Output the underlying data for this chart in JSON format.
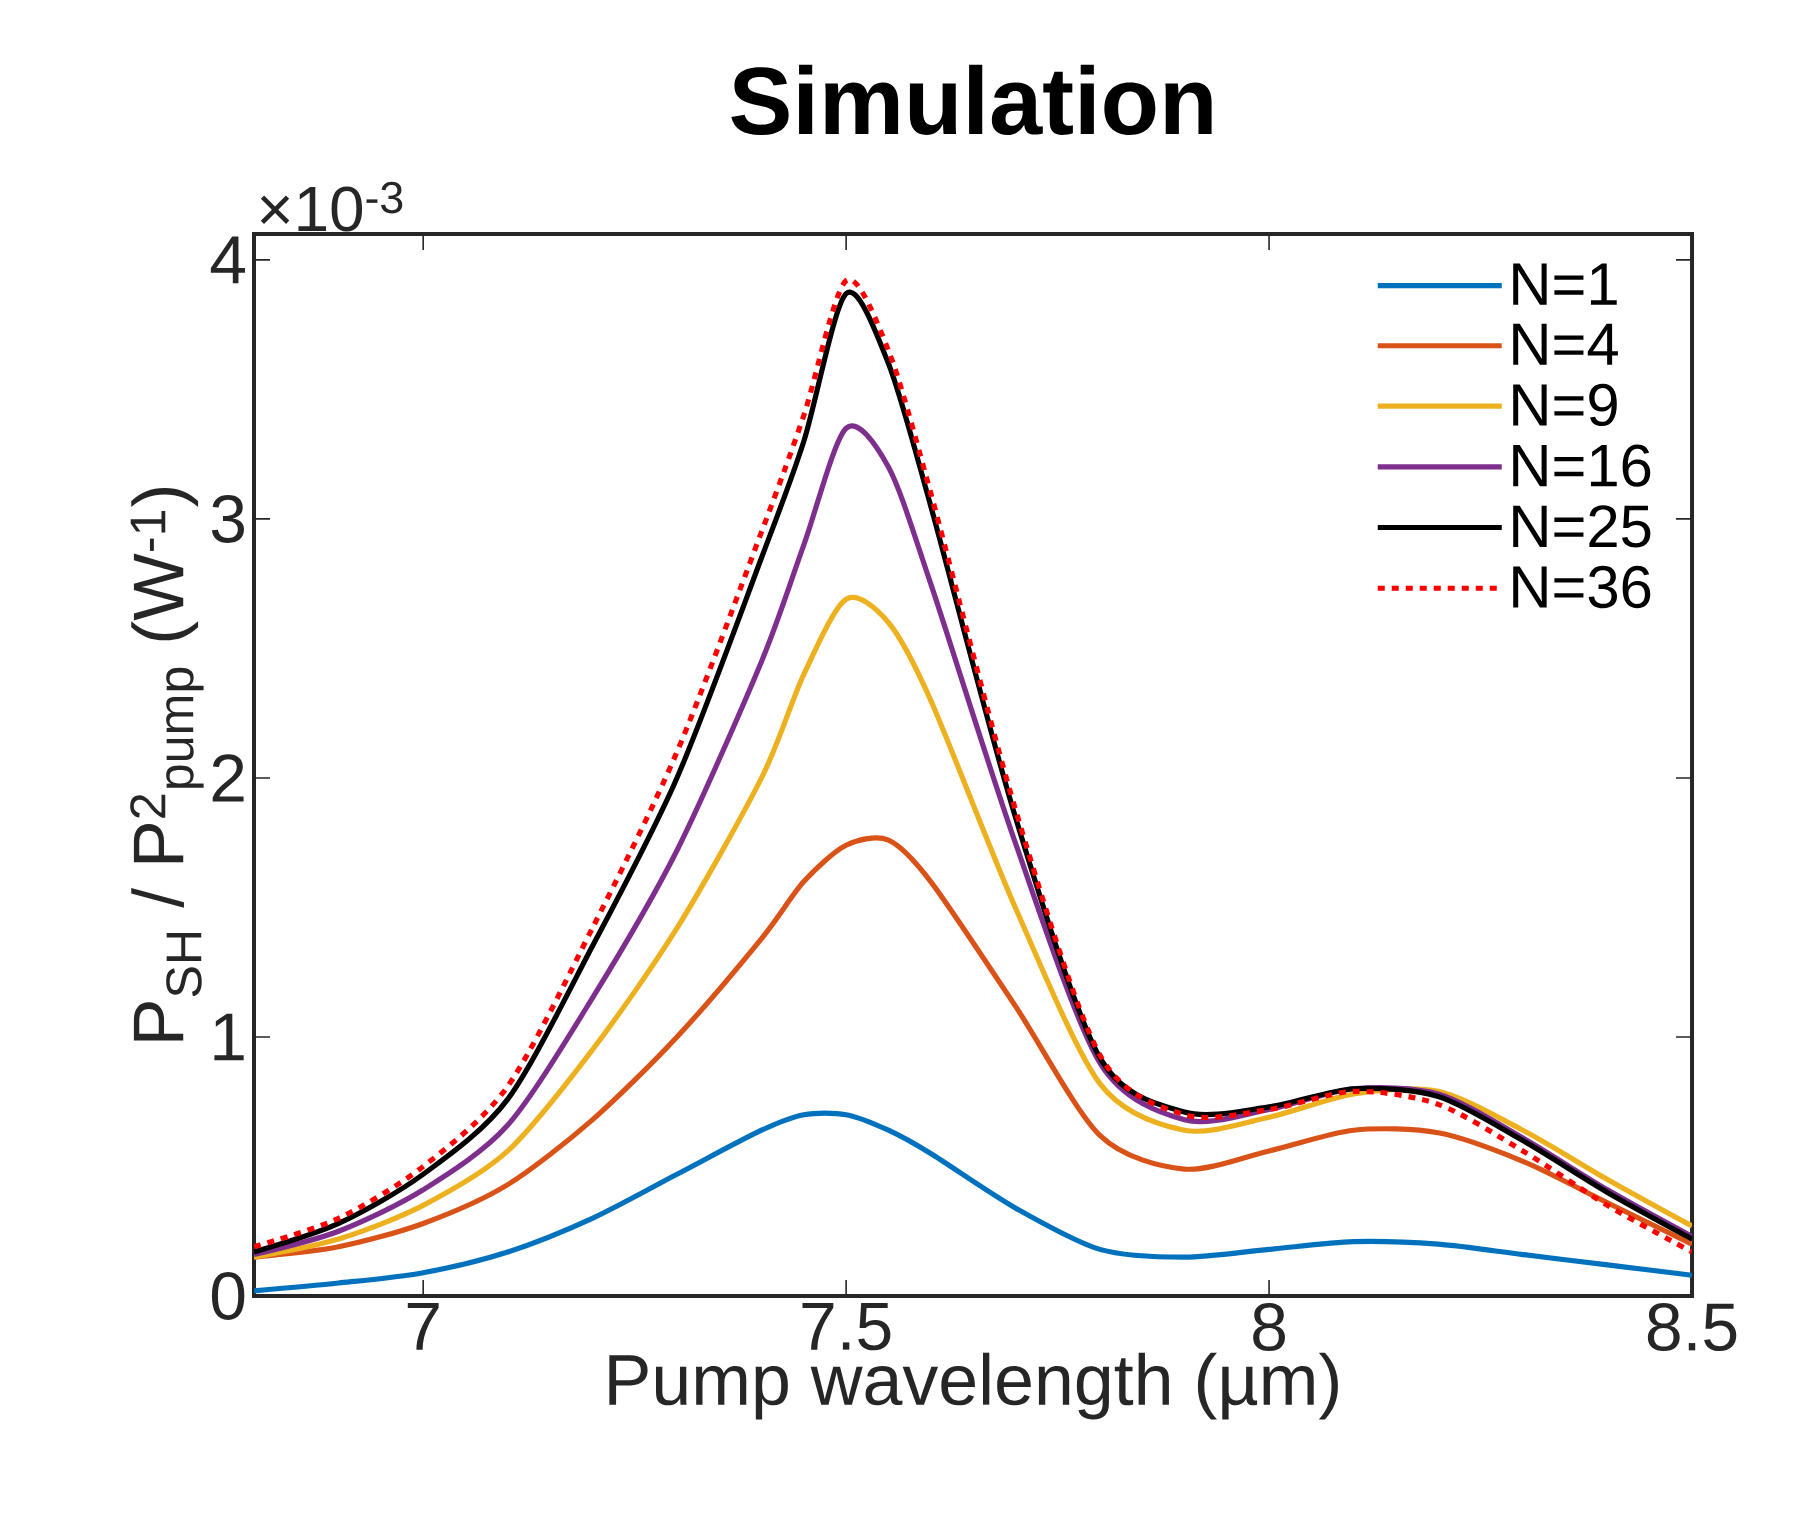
{
  "chart_data": {
    "type": "line",
    "title": "Simulation",
    "xlabel": "Pump wavelength (µm)",
    "ylabel": "P$_{SH}$ / P$^{2}$$_{pump}$ (W$^{-1}$)",
    "annotations": [
      "×10$^{-3}$"
    ],
    "x": [
      6.8,
      6.9,
      7.0,
      7.1,
      7.2,
      7.3,
      7.4,
      7.45,
      7.5,
      7.55,
      7.6,
      7.7,
      7.8,
      7.9,
      8.0,
      8.1,
      8.2,
      8.3,
      8.4,
      8.5
    ],
    "series": [
      {
        "name": "N=1",
        "color": "#0072bd",
        "line_style": "solid",
        "values": [
          0.02,
          0.05,
          0.09,
          0.17,
          0.3,
          0.47,
          0.64,
          0.7,
          0.7,
          0.64,
          0.55,
          0.34,
          0.18,
          0.15,
          0.18,
          0.21,
          0.2,
          0.16,
          0.12,
          0.08
        ]
      },
      {
        "name": "N=4",
        "color": "#d95319",
        "line_style": "solid",
        "values": [
          0.15,
          0.19,
          0.28,
          0.43,
          0.68,
          1.0,
          1.38,
          1.6,
          1.74,
          1.76,
          1.6,
          1.12,
          0.62,
          0.49,
          0.56,
          0.64,
          0.63,
          0.52,
          0.36,
          0.2
        ]
      },
      {
        "name": "N=9",
        "color": "#edb120",
        "line_style": "solid",
        "values": [
          0.15,
          0.22,
          0.35,
          0.56,
          0.95,
          1.42,
          2.0,
          2.4,
          2.69,
          2.6,
          2.3,
          1.5,
          0.82,
          0.64,
          0.69,
          0.78,
          0.79,
          0.64,
          0.45,
          0.27
        ]
      },
      {
        "name": "N=16",
        "color": "#7e2f8e",
        "line_style": "solid",
        "values": [
          0.16,
          0.25,
          0.41,
          0.66,
          1.15,
          1.72,
          2.45,
          2.9,
          3.35,
          3.2,
          2.75,
          1.75,
          0.9,
          0.68,
          0.72,
          0.8,
          0.78,
          0.61,
          0.41,
          0.23
        ]
      },
      {
        "name": "N=25",
        "color": "#000000",
        "line_style": "solid",
        "values": [
          0.17,
          0.28,
          0.47,
          0.76,
          1.35,
          2.0,
          2.85,
          3.3,
          3.87,
          3.6,
          3.05,
          1.85,
          0.92,
          0.71,
          0.73,
          0.8,
          0.77,
          0.6,
          0.4,
          0.22
        ]
      },
      {
        "name": "N=36",
        "color": "#ff0000",
        "line_style": "dotted",
        "values": [
          0.19,
          0.3,
          0.5,
          0.81,
          1.42,
          2.1,
          2.95,
          3.4,
          3.92,
          3.65,
          3.1,
          1.88,
          0.93,
          0.7,
          0.72,
          0.79,
          0.74,
          0.56,
          0.35,
          0.17
        ]
      }
    ],
    "xlim": [
      6.8,
      8.5
    ],
    "xticks": [
      7,
      7.5,
      8,
      8.5
    ],
    "ylim": [
      0,
      4.1
    ],
    "yticks": [
      0,
      1,
      2,
      3,
      4
    ],
    "legend": "top right",
    "marker": "none",
    "grid": false
  }
}
